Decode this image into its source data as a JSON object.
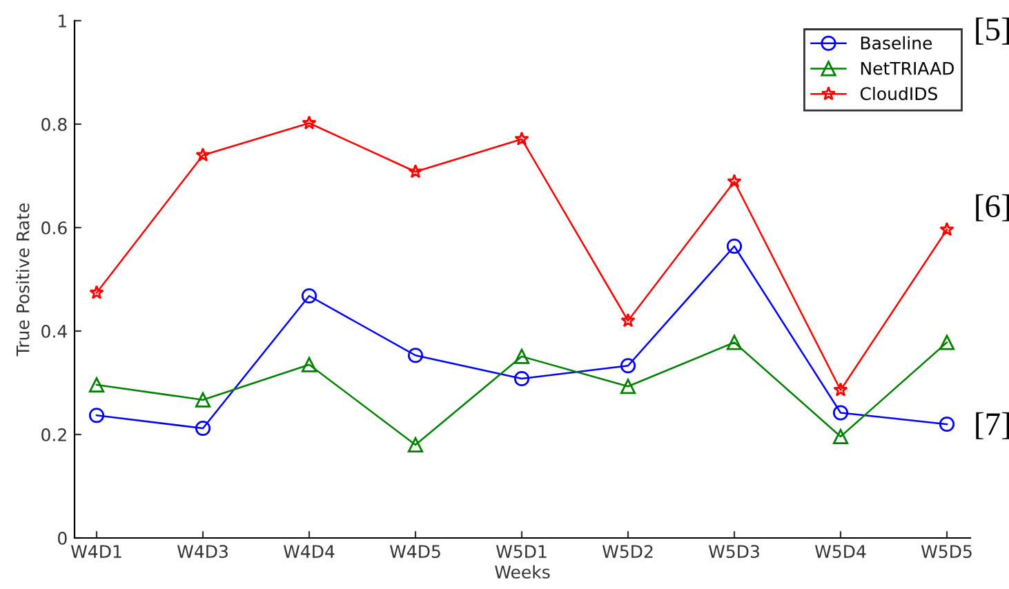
{
  "chart_data": {
    "type": "line",
    "xlabel": "Weeks",
    "ylabel": "True Positive Rate",
    "categories": [
      "W4D1",
      "W4D3",
      "W4D4",
      "W4D5",
      "W5D1",
      "W5D2",
      "W5D3",
      "W5D4",
      "W5D5"
    ],
    "series": [
      {
        "name": "Baseline",
        "color": "#0000ff",
        "marker": "circle",
        "values": [
          0.237,
          0.212,
          0.468,
          0.353,
          0.308,
          0.333,
          0.564,
          0.242,
          0.22
        ]
      },
      {
        "name": "NetTRIAAD",
        "color": "#008000",
        "marker": "triangle",
        "values": [
          0.296,
          0.267,
          0.335,
          0.18,
          0.351,
          0.293,
          0.378,
          0.196,
          0.378
        ]
      },
      {
        "name": "CloudIDS",
        "color": "#ff0000",
        "marker": "star",
        "values": [
          0.474,
          0.74,
          0.802,
          0.708,
          0.771,
          0.42,
          0.689,
          0.286,
          0.596
        ]
      }
    ],
    "ylim": [
      0,
      1
    ],
    "yticks": [
      0,
      0.2,
      0.4,
      0.6,
      0.8,
      1
    ],
    "grid": false,
    "legend": "top right",
    "line_style": "solid",
    "annotations": [
      "[5]",
      "[6]",
      "[7]"
    ]
  }
}
